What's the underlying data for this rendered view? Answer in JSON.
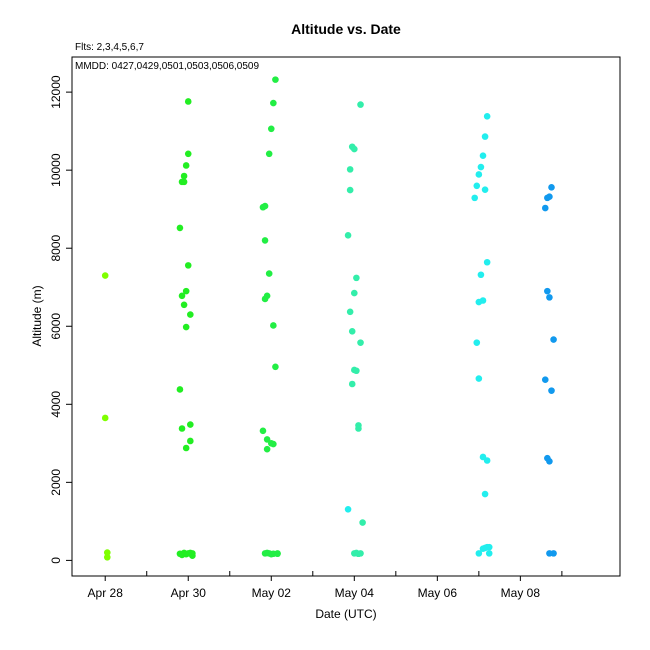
{
  "chart_data": {
    "type": "scatter",
    "title": "Altitude  vs. Date",
    "notes": [
      "Flts: 2,3,4,5,6,7",
      "MMDD: 0427,0429,0501,0503,0506,0509"
    ],
    "xlabel": "Date (UTC)",
    "ylabel": "Altitude (m)",
    "x_ticks": [
      {
        "value": 0.0,
        "label": "Apr 28"
      },
      {
        "value": 2.0,
        "label": "Apr 30"
      },
      {
        "value": 4.0,
        "label": "May 02"
      },
      {
        "value": 6.0,
        "label": "May 04"
      },
      {
        "value": 8.0,
        "label": "May 06"
      },
      {
        "value": 10.0,
        "label": "May 08"
      }
    ],
    "x_minor_ticks": [
      1.0,
      3.0,
      5.0,
      7.0,
      9.0,
      11.0
    ],
    "xlim": [
      -0.8,
      12.4
    ],
    "ylim": [
      -400,
      12900
    ],
    "y_ticks": [
      0,
      2000,
      4000,
      6000,
      8000,
      10000,
      12000
    ],
    "grid": false,
    "series": [
      {
        "color": "#7fff00",
        "x": [
          0.0,
          0.0,
          0.05,
          0.05
        ],
        "y": [
          7300,
          3650,
          200,
          80
        ]
      },
      {
        "color": "#1aff1a",
        "x": [
          1.8,
          1.8,
          1.85,
          1.85,
          1.85,
          1.9,
          1.9,
          1.9,
          1.95,
          1.95,
          1.95,
          1.95,
          2.0,
          2.0,
          2.0,
          2.05,
          2.05,
          2.05,
          2.05,
          2.1,
          2.1,
          1.85,
          1.9,
          1.95,
          2.0,
          1.8
        ],
        "y": [
          8520,
          4380,
          3380,
          6780,
          9700,
          9850,
          9700,
          6550,
          6900,
          5980,
          2880,
          10120,
          10420,
          11760,
          7560,
          6300,
          3480,
          3060,
          190,
          120,
          180,
          140,
          190,
          160,
          180,
          170
        ],
        "draw_color": "#22ee22"
      },
      {
        "color": "#00ff4d",
        "x": [
          3.8,
          3.8,
          3.85,
          3.85,
          3.85,
          3.9,
          3.9,
          3.9,
          3.95,
          3.95,
          4.0,
          4.0,
          4.05,
          4.05,
          4.05,
          4.1,
          4.1,
          4.15,
          4.15,
          3.9,
          3.95,
          4.0,
          4.05,
          3.85
        ],
        "y": [
          9050,
          3320,
          8200,
          9080,
          6700,
          6780,
          2850,
          3100,
          7350,
          10420,
          11060,
          3000,
          11720,
          6020,
          2980,
          12320,
          4960,
          180,
          170,
          190,
          180,
          160,
          170,
          180
        ],
        "draw_color": "#22ee44"
      },
      {
        "color": "#00ffb3",
        "x": [
          5.85,
          5.9,
          5.9,
          5.95,
          5.95,
          6.0,
          6.0,
          6.0,
          6.05,
          6.05,
          6.1,
          6.1,
          6.1,
          6.15,
          6.15,
          5.95,
          5.9,
          6.0,
          6.05,
          6.1,
          6.2,
          6.15
        ],
        "y": [
          8330,
          9490,
          10020,
          10600,
          5870,
          10540,
          6850,
          4880,
          7240,
          4860,
          3460,
          3380,
          170,
          11680,
          5580,
          4520,
          6370,
          180,
          190,
          170,
          970,
          180
        ],
        "draw_color": "#33eeaa"
      },
      {
        "color": "#00ffff",
        "x": [
          5.85,
          8.9,
          8.95,
          9.0,
          9.0,
          9.05,
          9.1,
          9.1,
          9.15,
          9.15,
          9.2,
          9.2,
          9.2,
          9.25,
          9.25,
          8.95,
          9.0,
          9.05,
          9.1,
          9.15,
          9.0,
          9.1,
          9.15,
          9.2
        ],
        "y": [
          1310,
          9290,
          9600,
          9890,
          6620,
          10080,
          10370,
          6660,
          10860,
          9500,
          11380,
          7640,
          2560,
          180,
          340,
          5580,
          4660,
          7320,
          2650,
          1700,
          180,
          300,
          320,
          340
        ],
        "draw_color": "#22eeee"
      },
      {
        "color": "#0099ff",
        "x": [
          10.6,
          10.6,
          10.65,
          10.65,
          10.7,
          10.7,
          10.7,
          10.75,
          10.75,
          10.8,
          10.8,
          10.65,
          10.7
        ],
        "y": [
          9030,
          4630,
          9290,
          6900,
          9320,
          6740,
          2540,
          9560,
          4350,
          5660,
          180,
          2620,
          180
        ],
        "draw_color": "#1199ee"
      }
    ]
  }
}
